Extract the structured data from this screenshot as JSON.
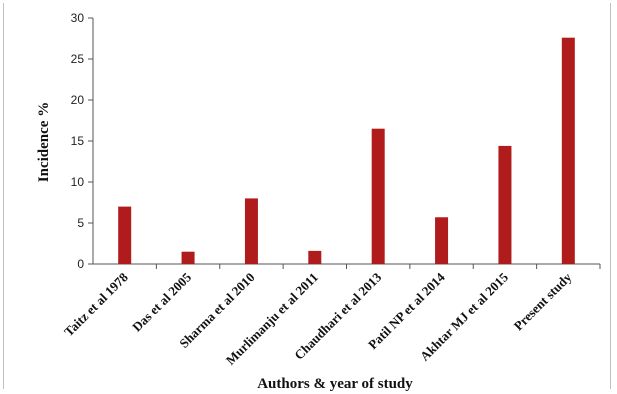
{
  "chart_data": {
    "type": "bar",
    "categories": [
      "Taitz et al 1978",
      "Das et al 2005",
      "Sharma et al 2010",
      "Murlimanju et al 2011",
      "Chaudhari et al 2013",
      "Patil NP et al 2014",
      "Akhtar MJ et al 2015",
      "Present study"
    ],
    "values": [
      7.0,
      1.5,
      8.0,
      1.6,
      16.5,
      5.7,
      14.4,
      27.6
    ],
    "xlabel": "Authors & year of study",
    "ylabel": "Incidence %",
    "ylim": [
      0,
      30
    ],
    "yticks": [
      0,
      5,
      10,
      15,
      20,
      25,
      30
    ],
    "bar_color": "#b01c1c",
    "grid": false,
    "legend": "none"
  }
}
